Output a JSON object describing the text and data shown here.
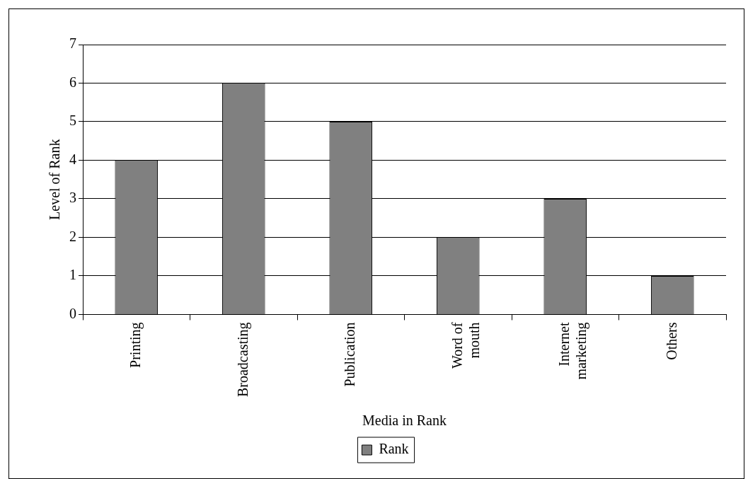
{
  "chart_data": {
    "type": "bar",
    "xlabel": "Media in Rank",
    "ylabel": "Level of Rank",
    "categories": [
      "Printing",
      "Broadcasting",
      "Publication",
      "Word of mouth",
      "Internet marketing",
      "Others"
    ],
    "series": [
      {
        "name": "Rank",
        "color": "#808080",
        "values": [
          4,
          6,
          5,
          2,
          3,
          1
        ]
      }
    ],
    "ylim": [
      0,
      7
    ],
    "yticks": [
      0,
      1,
      2,
      3,
      4,
      5,
      6,
      7
    ],
    "grid": "y",
    "legend": "bottom"
  }
}
